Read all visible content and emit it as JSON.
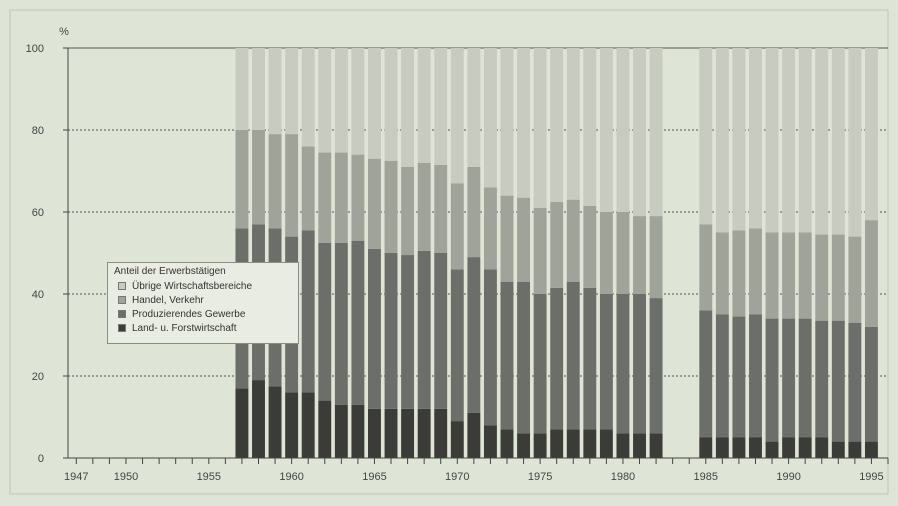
{
  "chart_data": {
    "type": "bar",
    "stacked": true,
    "ylabel": "%",
    "ylim": [
      0,
      100
    ],
    "yticks": [
      0,
      20,
      40,
      60,
      80,
      100
    ],
    "xlim": [
      1946.5,
      1996
    ],
    "xticks": [
      1947,
      1950,
      1955,
      1960,
      1965,
      1970,
      1975,
      1980,
      1985,
      1990,
      1995
    ],
    "legend": {
      "title": "Anteil der Erwerbstätigen",
      "placement": "center-left"
    },
    "x": [
      1957,
      1958,
      1959,
      1960,
      1961,
      1962,
      1963,
      1964,
      1965,
      1966,
      1967,
      1968,
      1969,
      1970,
      1971,
      1972,
      1973,
      1974,
      1975,
      1976,
      1977,
      1978,
      1979,
      1980,
      1981,
      1982,
      1985,
      1986,
      1987,
      1988,
      1989,
      1990,
      1991,
      1992,
      1993,
      1994,
      1995
    ],
    "series": [
      {
        "name": "Land- u. Forstwirtschaft",
        "color": "#3b3c38",
        "values": [
          17,
          19,
          17.5,
          16,
          16,
          14,
          13,
          13,
          12,
          12,
          12,
          12,
          12,
          9,
          11,
          8,
          7,
          6,
          6,
          7,
          7,
          7,
          7,
          6,
          6,
          6,
          5,
          5,
          5,
          5,
          4,
          5,
          5,
          5,
          4,
          4,
          4
        ]
      },
      {
        "name": "Produzierendes Gewerbe",
        "color": "#6c6f69",
        "values": [
          39,
          38,
          38.5,
          38,
          39.5,
          38.5,
          39.5,
          40,
          39,
          38,
          37.5,
          38.5,
          38,
          37,
          38,
          38,
          36,
          37,
          34,
          34.5,
          36,
          34.5,
          33,
          34,
          34,
          33,
          31,
          30,
          29.5,
          30,
          30,
          29,
          29,
          28.5,
          29.5,
          29,
          28
        ]
      },
      {
        "name": "Handel, Verkehr",
        "color": "#9fa39a",
        "values": [
          24,
          23,
          23,
          25,
          20.5,
          22,
          22,
          21,
          22,
          22.5,
          21.5,
          21.5,
          21.5,
          21,
          22,
          20,
          21,
          20.5,
          21,
          21,
          20,
          20,
          20,
          20,
          19,
          20,
          21,
          20,
          21,
          21,
          21,
          21,
          21,
          21,
          21,
          21,
          26
        ]
      },
      {
        "name": "Übrige Wirtschaftsbereiche",
        "color": "#c8cbc0",
        "values": [
          20,
          20,
          21,
          21,
          24,
          25.5,
          25.5,
          26,
          27,
          27.5,
          29,
          28,
          28.5,
          33,
          29,
          34,
          36,
          36.5,
          39,
          37.5,
          37,
          38.5,
          40,
          40,
          41,
          41,
          43,
          45,
          44.5,
          44,
          45,
          45,
          45,
          45.5,
          45.5,
          46,
          42
        ]
      }
    ]
  }
}
